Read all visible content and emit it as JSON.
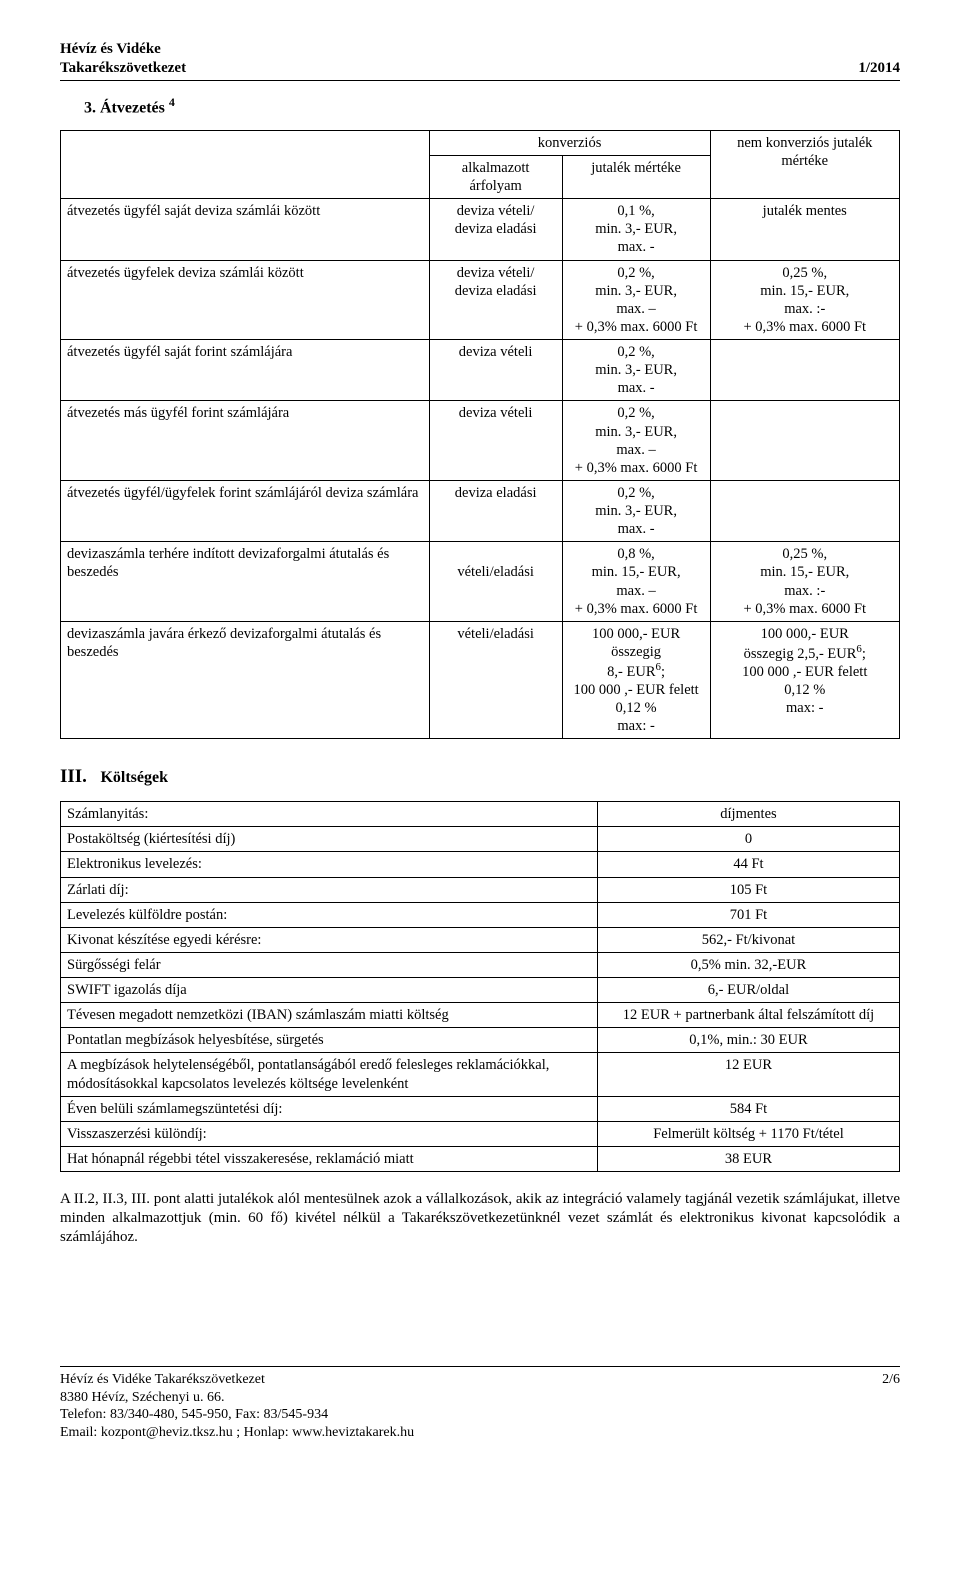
{
  "header": {
    "org_line1": "Hévíz és Vidéke",
    "org_line2": "Takarékszövetkezet",
    "right": "1/2014"
  },
  "section1": {
    "title": "3. Átvezetés ",
    "title_sup": "4",
    "col_konv": "konverziós",
    "col_alk": "alkalmazott árfolyam",
    "col_jut": "jutalék mértéke",
    "col_nem": "nem konverziós jutalék mértéke",
    "rows": [
      {
        "c1": "átvezetés ügyfél saját deviza számlái között",
        "c2": "deviza vételi/\ndeviza eladási",
        "c3": "0,1 %,\nmin. 3,- EUR,\nmax. -",
        "c4": "jutalék mentes"
      },
      {
        "c1": "átvezetés ügyfelek deviza számlái között",
        "c2": "deviza vételi/\ndeviza eladási",
        "c3": "0,2 %,\nmin. 3,- EUR,\nmax. –\n+ 0,3% max. 6000 Ft",
        "c4": "0,25 %,\nmin. 15,- EUR,\nmax. :-\n+ 0,3% max. 6000 Ft"
      },
      {
        "c1": "átvezetés ügyfél saját forint számlájára",
        "c2": "deviza vételi",
        "c3": "0,2 %,\nmin. 3,- EUR,\nmax. -",
        "c4": ""
      },
      {
        "c1": "átvezetés más ügyfél forint számlájára",
        "c2": "deviza vételi",
        "c3": "0,2 %,\nmin. 3,- EUR,\nmax. –\n+ 0,3% max. 6000 Ft",
        "c4": ""
      },
      {
        "c1": "átvezetés ügyfél/ügyfelek forint számlájáról deviza számlára",
        "c2": "deviza eladási",
        "c3": "0,2 %,\nmin. 3,- EUR,\nmax. -",
        "c4": ""
      },
      {
        "c1": "devizaszámla terhére indított devizaforgalmi átutalás és beszedés",
        "c2": "\nvételi/eladási",
        "c3": "0,8 %,\nmin. 15,- EUR,\nmax. –\n+ 0,3% max. 6000 Ft",
        "c4": "0,25 %,\nmin. 15,- EUR,\nmax. :-\n+ 0,3% max. 6000 Ft"
      },
      {
        "c1": "devizaszámla javára érkező devizaforgalmi átutalás és beszedés",
        "c2": "vételi/eladási",
        "c3_html": "100 000,- EUR összegig\n8,- EUR<sup>6</sup>;\n100 000 ,- EUR felett\n0,12 %\nmax: -",
        "c4_html": "100 000,- EUR\nösszegig 2,5,- EUR<sup>6</sup>;\n100 000 ,- EUR felett\n0,12 %\nmax: -"
      }
    ]
  },
  "section2": {
    "title_num": "III.",
    "title_label": "Költségek",
    "rows": [
      [
        "Számlanyitás:",
        "díjmentes"
      ],
      [
        "Postaköltség (kiértesítési díj)",
        "0"
      ],
      [
        "Elektronikus levelezés:",
        "44 Ft"
      ],
      [
        "Zárlati díj:",
        "105 Ft"
      ],
      [
        "Levelezés külföldre postán:",
        "701 Ft"
      ],
      [
        "Kivonat készítése egyedi kérésre:",
        "562,- Ft/kivonat"
      ],
      [
        "Sürgősségi felár",
        "0,5% min. 32,-EUR"
      ],
      [
        "SWIFT igazolás díja",
        "6,- EUR/oldal"
      ],
      [
        "Tévesen megadott nemzetközi (IBAN) számlaszám miatti költség",
        "12 EUR + partnerbank által felszámított díj"
      ],
      [
        "Pontatlan megbízások helyesbítése, sürgetés",
        "0,1%, min.: 30 EUR"
      ],
      [
        "A megbízások helytelenségéből, pontatlanságából eredő felesleges reklamációkkal, módosításokkal kapcsolatos levelezés költsége levelenként",
        "12 EUR"
      ],
      [
        "Éven belüli számlamegszüntetési díj:",
        "584 Ft"
      ],
      [
        "Visszaszerzési különdíj:",
        "Felmerült költség + 1170 Ft/tétel"
      ],
      [
        "Hat hónapnál régebbi tétel visszakeresése, reklamáció miatt",
        "38 EUR"
      ]
    ]
  },
  "paragraph": "A II.2, II.3, III. pont alatti jutalékok alól mentesülnek azok a vállalkozások, akik az integráció valamely tagjánál vezetik számlájukat, illetve minden alkalmazottjuk (min. 60 fő) kivétel nélkül a Takarékszövetkezetünknél vezet számlát és elektronikus kivonat kapcsolódik a számlájához.",
  "footer": {
    "l1": "Hévíz és Vidéke Takarékszövetkezet",
    "l2": "8380 Hévíz, Széchenyi u. 66.",
    "l3": "Telefon: 83/340-480, 545-950, Fax: 83/545-934",
    "l4": "Email: kozpont@heviz.tksz.hu ; Honlap: www.heviztakarek.hu",
    "page": "2/6"
  }
}
